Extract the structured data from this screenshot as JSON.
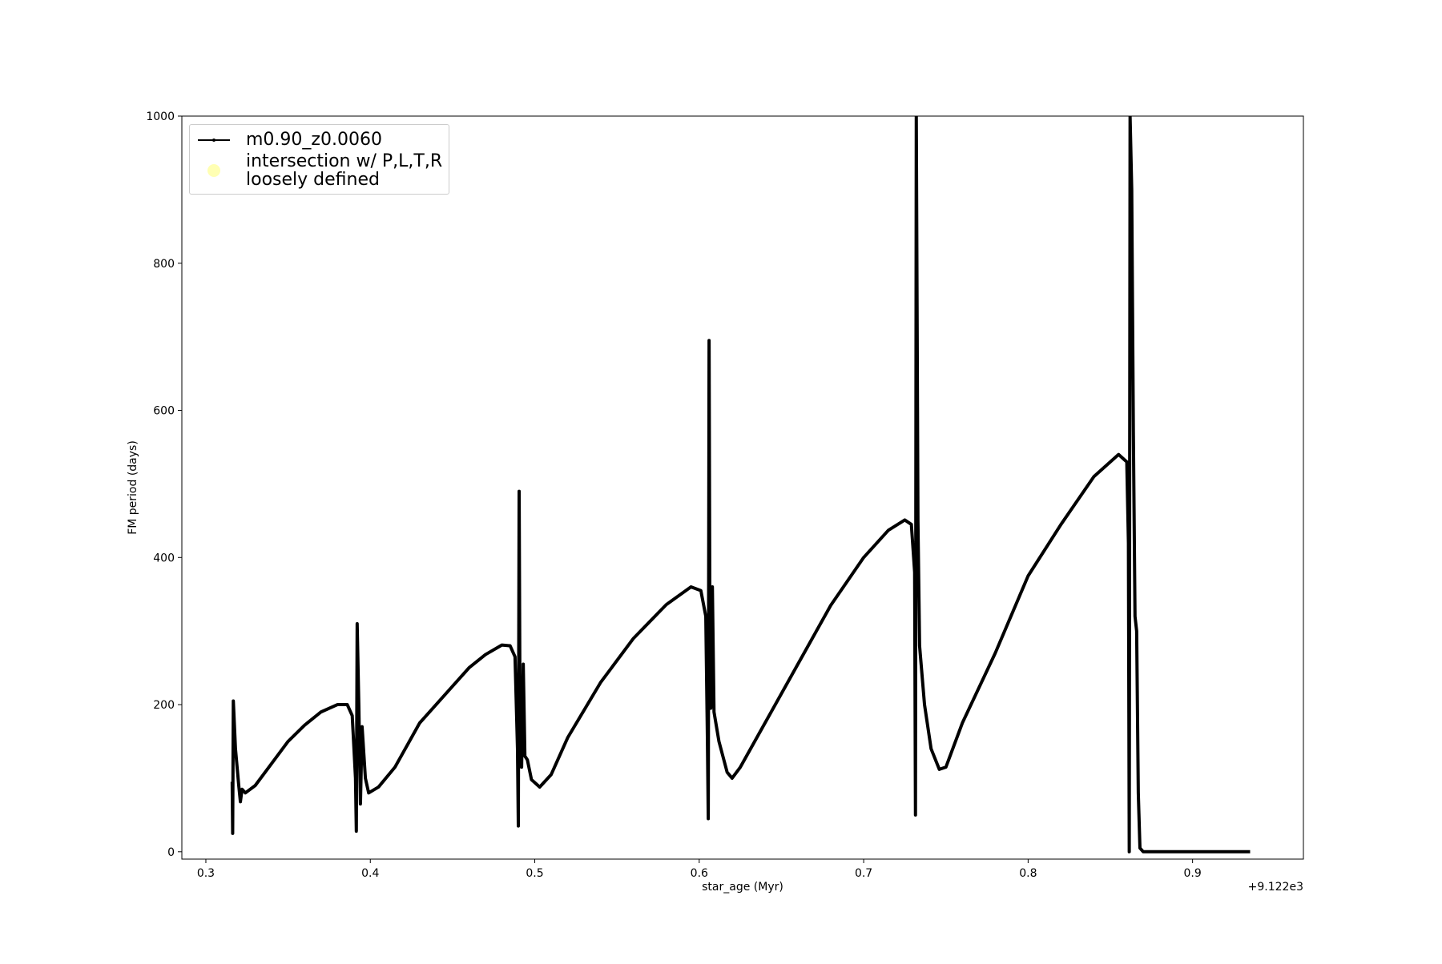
{
  "chart_data": {
    "type": "line",
    "xlabel": "star_age (Myr)",
    "ylabel": "FM period (days)",
    "x_offset_text": "+9.122e3",
    "xlim": [
      0.2854,
      0.9674
    ],
    "ylim": [
      -10,
      1000
    ],
    "xticks": [
      0.3,
      0.4,
      0.5,
      0.6,
      0.7,
      0.8,
      0.9
    ],
    "yticks": [
      0,
      200,
      400,
      600,
      800,
      1000
    ],
    "legend": "upper left",
    "series": [
      {
        "name": "m0.90_z0.0060",
        "color": "#000000",
        "x": [
          0.316,
          0.3163,
          0.3167,
          0.318,
          0.32,
          0.321,
          0.322,
          0.324,
          0.33,
          0.34,
          0.35,
          0.36,
          0.37,
          0.38,
          0.386,
          0.389,
          0.391,
          0.3915,
          0.392,
          0.393,
          0.394,
          0.395,
          0.397,
          0.399,
          0.405,
          0.415,
          0.43,
          0.45,
          0.46,
          0.47,
          0.48,
          0.485,
          0.488,
          0.4895,
          0.49,
          0.4905,
          0.491,
          0.492,
          0.493,
          0.494,
          0.4955,
          0.498,
          0.503,
          0.51,
          0.52,
          0.54,
          0.56,
          0.58,
          0.595,
          0.601,
          0.604,
          0.605,
          0.6055,
          0.606,
          0.6065,
          0.607,
          0.608,
          0.609,
          0.612,
          0.617,
          0.62,
          0.625,
          0.64,
          0.66,
          0.68,
          0.7,
          0.715,
          0.725,
          0.729,
          0.731,
          0.7315,
          0.732,
          0.733,
          0.734,
          0.737,
          0.741,
          0.746,
          0.75,
          0.76,
          0.78,
          0.8,
          0.82,
          0.84,
          0.855,
          0.86,
          0.861,
          0.8615,
          0.862,
          0.863,
          0.864,
          0.865,
          0.866,
          0.867,
          0.868,
          0.87,
          0.9,
          0.935
        ],
        "values": [
          95,
          25,
          205,
          140,
          90,
          68,
          85,
          80,
          90,
          120,
          150,
          172,
          190,
          200,
          200,
          185,
          100,
          28,
          310,
          200,
          65,
          170,
          100,
          80,
          88,
          115,
          175,
          225,
          250,
          268,
          281,
          280,
          265,
          140,
          35,
          490,
          200,
          115,
          255,
          130,
          125,
          98,
          88,
          105,
          155,
          230,
          290,
          336,
          360,
          355,
          320,
          150,
          45,
          695,
          300,
          195,
          360,
          190,
          150,
          108,
          100,
          115,
          175,
          255,
          335,
          400,
          437,
          451,
          445,
          380,
          50,
          1000,
          450,
          280,
          200,
          140,
          112,
          115,
          175,
          270,
          375,
          445,
          510,
          540,
          530,
          420,
          0,
          1000,
          900,
          570,
          320,
          300,
          80,
          5,
          0,
          0,
          0
        ]
      },
      {
        "name": "intersection w/ P,L,T,R\nloosely defined",
        "color": "#ffffb3",
        "x": [],
        "values": []
      }
    ]
  }
}
